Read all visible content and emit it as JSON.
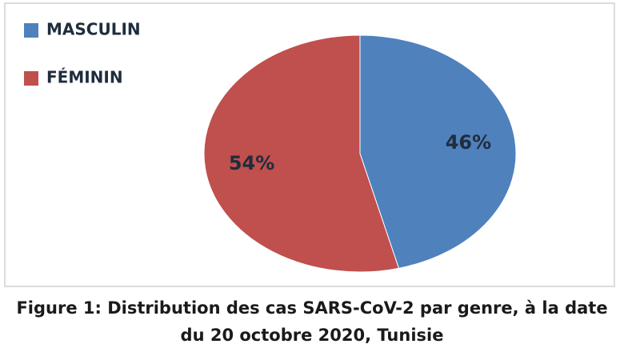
{
  "chart_data": {
    "type": "pie",
    "title": "Figure 1: Distribution des cas SARS-CoV-2 par genre, à la date du 20 octobre 2020, Tunisie",
    "categories": [
      "MASCULIN",
      "FÉMININ"
    ],
    "values": [
      46,
      54
    ],
    "value_labels": [
      "46%",
      "54%"
    ],
    "colors": [
      "#4f81bd",
      "#c0504d"
    ],
    "legend": "top-left"
  }
}
